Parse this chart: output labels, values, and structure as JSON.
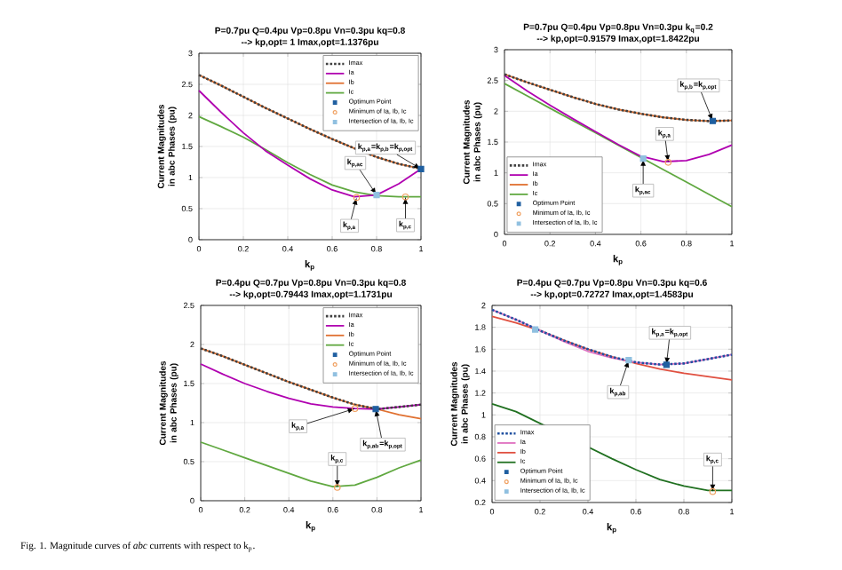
{
  "chart_data": [
    {
      "type": "line",
      "title": "P=0.7pu   Q=0.4pu   Vp=0.8pu   Vn=0.3pu   kq=0.8",
      "subtitle": "-->     kp,opt= 1     Imax,opt=1.1376pu",
      "xlabel": "k$_{p}$",
      "ylabel": "Current Magnitudes in abc Phases (pu)",
      "xlim": [
        0,
        1
      ],
      "xticks": [
        0,
        0.2,
        0.4,
        0.6,
        0.8,
        1
      ],
      "ylim": [
        0,
        3
      ],
      "yticks": [
        0,
        0.5,
        1,
        1.5,
        2,
        2.5,
        3
      ],
      "grid": true,
      "legend": "top right",
      "x": [
        0,
        0.1,
        0.2,
        0.3,
        0.4,
        0.5,
        0.6,
        0.7,
        0.8,
        0.9,
        1
      ],
      "series": [
        {
          "name": "Imax",
          "color": "#404040",
          "line_style": "dotted",
          "values": [
            2.65,
            2.48,
            2.3,
            2.12,
            1.95,
            1.78,
            1.62,
            1.47,
            1.33,
            1.22,
            1.14
          ]
        },
        {
          "name": "Ia",
          "color": "#b000b0",
          "line_style": "solid",
          "values": [
            2.4,
            2.05,
            1.72,
            1.43,
            1.2,
            0.98,
            0.8,
            0.69,
            0.72,
            0.9,
            1.14
          ]
        },
        {
          "name": "Ib",
          "color": "#e07030",
          "line_style": "solid",
          "values": [
            2.65,
            2.48,
            2.3,
            2.12,
            1.95,
            1.78,
            1.62,
            1.47,
            1.33,
            1.22,
            1.14
          ]
        },
        {
          "name": "Ic",
          "color": "#60a840",
          "line_style": "solid",
          "values": [
            1.98,
            1.82,
            1.65,
            1.45,
            1.24,
            1.05,
            0.88,
            0.77,
            0.71,
            0.69,
            0.69
          ]
        },
        {
          "name": "Optimum Point",
          "type": "scatter",
          "marker": "square",
          "color": "#1f5fa0",
          "x": [
            1
          ],
          "values": [
            1.1376
          ]
        },
        {
          "name": "Minimum of Ia, Ib, Ic",
          "type": "scatter",
          "marker": "circle",
          "color": "#f0a060",
          "x": [
            0.71,
            0.93
          ],
          "values": [
            0.68,
            0.69
          ]
        },
        {
          "name": "Intersection of Ia, Ib, Ic",
          "type": "scatter",
          "marker": "square",
          "color": "#90c0e0",
          "x": [
            0.8
          ],
          "values": [
            0.72
          ]
        }
      ],
      "annotations": [
        {
          "text": "k$_{p,ac}$",
          "x": 0.8,
          "y": 0.72
        },
        {
          "text": "k$_{p,a}$",
          "x": 0.71,
          "y": 0.68
        },
        {
          "text": "k$_{p,c}$",
          "x": 0.93,
          "y": 0.69
        },
        {
          "text": "k$_{p,a}$=k$_{p,b}$=k$_{p,opt}$",
          "x": 1,
          "y": 1.1376
        }
      ]
    },
    {
      "type": "line",
      "title": "P=0.7pu   Q=0.4pu   Vp=0.8pu   Vn=0.3pu   k$_{q}$=0.2",
      "subtitle": "-->     kp,opt=0.91579     Imax,opt=1.8422pu",
      "xlabel": "k$_{p}$",
      "ylabel": "Current Magnitudes in abc Phases (pu)",
      "xlim": [
        0,
        1
      ],
      "xticks": [
        0,
        0.2,
        0.4,
        0.6,
        0.8,
        1
      ],
      "ylim": [
        0,
        3
      ],
      "yticks": [
        0,
        0.5,
        1,
        1.5,
        2,
        2.5,
        3
      ],
      "grid": true,
      "legend": "bottom left",
      "x": [
        0,
        0.1,
        0.2,
        0.3,
        0.4,
        0.5,
        0.6,
        0.7,
        0.8,
        0.9,
        1
      ],
      "series": [
        {
          "name": "Imax",
          "color": "#404040",
          "line_style": "dotted",
          "values": [
            2.6,
            2.47,
            2.35,
            2.23,
            2.12,
            2.03,
            1.96,
            1.9,
            1.86,
            1.84,
            1.85
          ]
        },
        {
          "name": "Ia",
          "color": "#b000b0",
          "line_style": "solid",
          "values": [
            2.58,
            2.33,
            2.1,
            1.88,
            1.67,
            1.46,
            1.27,
            1.18,
            1.2,
            1.3,
            1.45
          ]
        },
        {
          "name": "Ib",
          "color": "#e07030",
          "line_style": "solid",
          "values": [
            2.6,
            2.47,
            2.35,
            2.23,
            2.12,
            2.03,
            1.96,
            1.9,
            1.86,
            1.84,
            1.85
          ]
        },
        {
          "name": "Ic",
          "color": "#60a840",
          "line_style": "solid",
          "values": [
            2.45,
            2.25,
            2.05,
            1.85,
            1.65,
            1.45,
            1.25,
            1.05,
            0.85,
            0.65,
            0.45
          ]
        },
        {
          "name": "Optimum Point",
          "type": "scatter",
          "marker": "square",
          "color": "#1f5fa0",
          "x": [
            0.91579
          ],
          "values": [
            1.8422
          ]
        },
        {
          "name": "Minimum of Ia, Ib, Ic",
          "type": "scatter",
          "marker": "circle",
          "color": "#f0a060",
          "x": [
            0.72
          ],
          "values": [
            1.17
          ]
        },
        {
          "name": "Intersection of Ia, Ib, Ic",
          "type": "scatter",
          "marker": "square",
          "color": "#90c0e0",
          "x": [
            0.61
          ],
          "values": [
            1.23
          ]
        }
      ],
      "annotations": [
        {
          "text": "k$_{p,b}$=k$_{p,opt}$",
          "x": 0.91579,
          "y": 1.8422
        },
        {
          "text": "k$_{p,a}$",
          "x": 0.72,
          "y": 1.17
        },
        {
          "text": "k$_{p,ac}$",
          "x": 0.61,
          "y": 1.23
        }
      ]
    },
    {
      "type": "line",
      "title": "P=0.4pu   Q=0.7pu   Vp=0.8pu   Vn=0.3pu   kq=0.8",
      "subtitle": "-->     kp,opt=0.79443     Imax,opt=1.1731pu",
      "xlabel": "k$_{p}$",
      "ylabel": "Current Magnitudes in abc Phases (pu)",
      "xlim": [
        0,
        1
      ],
      "xticks": [
        0,
        0.2,
        0.4,
        0.6,
        0.8,
        1
      ],
      "ylim": [
        0,
        2.5
      ],
      "yticks": [
        0,
        0.5,
        1,
        1.5,
        2,
        2.5
      ],
      "grid": true,
      "legend": "top right",
      "x": [
        0,
        0.1,
        0.2,
        0.3,
        0.4,
        0.5,
        0.6,
        0.7,
        0.8,
        0.9,
        1
      ],
      "series": [
        {
          "name": "Imax",
          "color": "#404040",
          "line_style": "dotted",
          "values": [
            1.95,
            1.85,
            1.74,
            1.63,
            1.52,
            1.42,
            1.32,
            1.23,
            1.1731,
            1.2,
            1.23
          ]
        },
        {
          "name": "Ia",
          "color": "#b000b0",
          "line_style": "solid",
          "values": [
            1.75,
            1.62,
            1.5,
            1.4,
            1.31,
            1.24,
            1.2,
            1.18,
            1.1731,
            1.2,
            1.23
          ]
        },
        {
          "name": "Ib",
          "color": "#e07030",
          "line_style": "solid",
          "values": [
            1.95,
            1.85,
            1.74,
            1.63,
            1.52,
            1.42,
            1.32,
            1.23,
            1.1731,
            1.1,
            1.05
          ]
        },
        {
          "name": "Ic",
          "color": "#60a840",
          "line_style": "solid",
          "values": [
            0.75,
            0.65,
            0.55,
            0.45,
            0.35,
            0.25,
            0.18,
            0.2,
            0.3,
            0.42,
            0.52
          ]
        },
        {
          "name": "Optimum Point",
          "type": "scatter",
          "marker": "square",
          "color": "#1f5fa0",
          "x": [
            0.79443
          ],
          "values": [
            1.1731
          ]
        },
        {
          "name": "Minimum of Ia, Ib, Ic",
          "type": "scatter",
          "marker": "circle",
          "color": "#f0a060",
          "x": [
            0.7,
            0.62
          ],
          "values": [
            1.18,
            0.17
          ]
        },
        {
          "name": "Intersection of Ia, Ib, Ic",
          "type": "scatter",
          "marker": "square",
          "color": "#90c0e0",
          "values": [
            null,
            null,
            null,
            null,
            null,
            null,
            null,
            null,
            null,
            null,
            null
          ]
        }
      ],
      "annotations": [
        {
          "text": "k$_{p,a}$",
          "x": 0.7,
          "y": 1.18
        },
        {
          "text": "k$_{p,ab}$=k$_{p,opt}$",
          "x": 0.79443,
          "y": 1.1731
        },
        {
          "text": "k$_{p,c}$",
          "x": 0.62,
          "y": 0.17
        }
      ]
    },
    {
      "type": "line",
      "title": "P=0.4pu   Q=0.7pu   Vp=0.8pu   Vn=0.3pu   kq=0.6",
      "subtitle": "-->     kp,opt=0.72727     Imax,opt=1.4583pu",
      "xlabel": "k$_{p}$",
      "ylabel": "Current Magnitudes in abc Phases (pu)",
      "xlim": [
        0,
        1
      ],
      "xticks": [
        0,
        0.2,
        0.4,
        0.6,
        0.8,
        1
      ],
      "ylim": [
        0.2,
        2
      ],
      "yticks": [
        0.2,
        0.4,
        0.6,
        0.8,
        1,
        1.2,
        1.4,
        1.6,
        1.8,
        2
      ],
      "grid": true,
      "legend": "bottom left",
      "x": [
        0,
        0.1,
        0.2,
        0.3,
        0.4,
        0.5,
        0.6,
        0.7,
        0.8,
        0.9,
        1
      ],
      "series": [
        {
          "name": "Imax",
          "color": "#2050a0",
          "line_style": "dotted",
          "values": [
            1.96,
            1.87,
            1.77,
            1.68,
            1.6,
            1.53,
            1.48,
            1.46,
            1.47,
            1.51,
            1.55
          ]
        },
        {
          "name": "Ia",
          "color": "#e070c0",
          "line_style": "solid",
          "values": [
            1.96,
            1.87,
            1.77,
            1.67,
            1.58,
            1.52,
            1.48,
            1.46,
            1.47,
            1.51,
            1.55
          ]
        },
        {
          "name": "Ib",
          "color": "#e05040",
          "line_style": "solid",
          "values": [
            1.9,
            1.84,
            1.77,
            1.68,
            1.6,
            1.53,
            1.47,
            1.42,
            1.38,
            1.35,
            1.32
          ]
        },
        {
          "name": "Ic",
          "color": "#207020",
          "line_style": "solid",
          "values": [
            1.1,
            1.03,
            null,
            null,
            null,
            0.6,
            0.5,
            0.41,
            0.35,
            0.31,
            0.31
          ]
        },
        {
          "name": "Optimum Point",
          "type": "scatter",
          "marker": "square",
          "color": "#1f5fa0",
          "x": [
            0.72727
          ],
          "values": [
            1.4583
          ]
        },
        {
          "name": "Minimum of Ia, Ib, Ic",
          "type": "scatter",
          "marker": "circle",
          "color": "#f0a060",
          "x": [
            0.92
          ],
          "values": [
            0.3
          ]
        },
        {
          "name": "Intersection of Ia, Ib, Ic",
          "type": "scatter",
          "marker": "square",
          "color": "#90c0e0",
          "x": [
            0.18,
            0.57
          ],
          "values": [
            1.78,
            1.5
          ]
        }
      ],
      "annotations": [
        {
          "text": "k$_{p,ab}$",
          "x": 0.57,
          "y": 1.5
        },
        {
          "text": "k$_{p,a}$=k$_{p,opt}$",
          "x": 0.72727,
          "y": 1.4583
        },
        {
          "text": "k$_{p,c}$",
          "x": 0.92,
          "y": 0.3
        },
        "Fig. 1.     Magnitude curves of *abc* currents with respect to k$_{p}$."
      ]
    }
  ]
}
